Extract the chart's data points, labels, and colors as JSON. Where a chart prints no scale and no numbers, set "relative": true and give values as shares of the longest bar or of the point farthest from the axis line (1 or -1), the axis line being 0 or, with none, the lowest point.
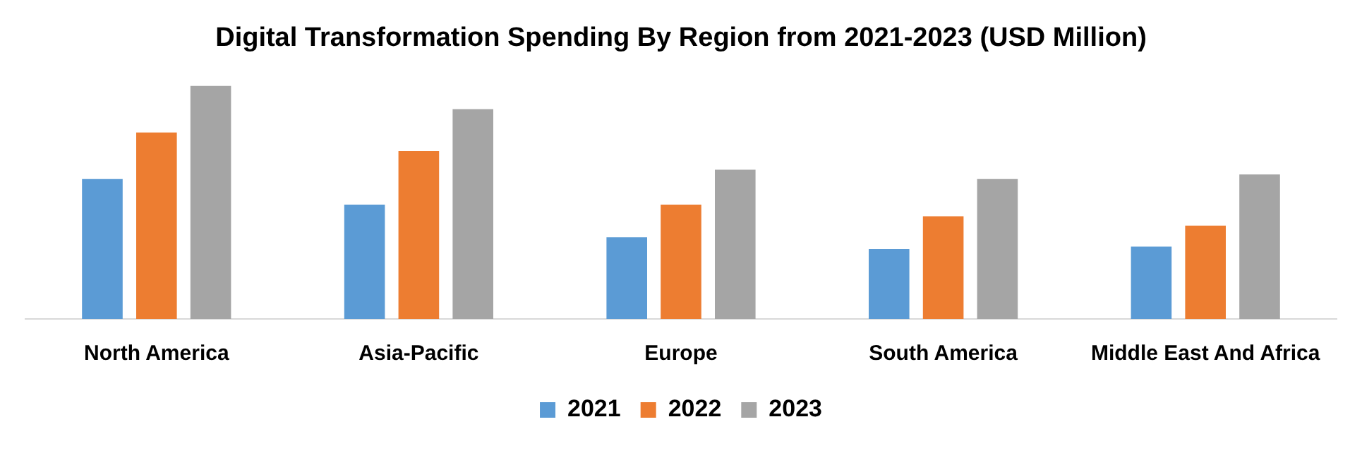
{
  "chart_data": {
    "type": "bar",
    "title": "Digital Transformation Spending By Region from 2021-2023 (USD Million)",
    "categories": [
      "North America",
      "Asia-Pacific",
      "Europe",
      "South America",
      "Middle East And Africa"
    ],
    "relative": true,
    "legend": "bottom",
    "series": [
      {
        "name": "2021",
        "color": "#5b9bd5",
        "values": [
          0.6,
          0.49,
          0.35,
          0.3,
          0.31
        ]
      },
      {
        "name": "2022",
        "color": "#ed7d31",
        "values": [
          0.8,
          0.72,
          0.49,
          0.44,
          0.4
        ]
      },
      {
        "name": "2023",
        "color": "#a5a5a5",
        "values": [
          1,
          0.9,
          0.64,
          0.6,
          0.62
        ]
      }
    ]
  }
}
